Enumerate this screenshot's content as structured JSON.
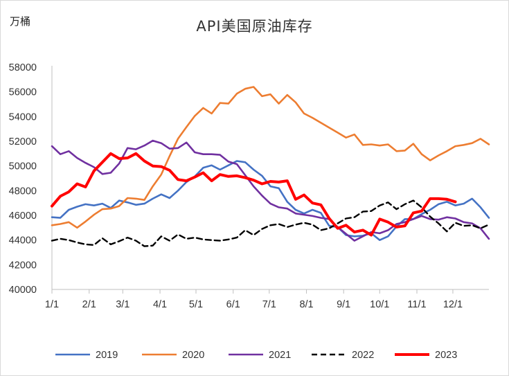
{
  "chart_data": {
    "type": "line",
    "title": "API美国原油库存",
    "unit_label": "万桶",
    "ylim": [
      40000,
      58000
    ],
    "yticks": [
      40000,
      42000,
      44000,
      46000,
      48000,
      50000,
      52000,
      54000,
      56000,
      58000
    ],
    "xlim": [
      1,
      53
    ],
    "xticks": [
      {
        "label": "1/1",
        "week": 1
      },
      {
        "label": "2/1",
        "week": 5.43
      },
      {
        "label": "3/1",
        "week": 9.43
      },
      {
        "label": "4/1",
        "week": 13.86
      },
      {
        "label": "5/1",
        "week": 18.14
      },
      {
        "label": "6/1",
        "week": 22.57
      },
      {
        "label": "7/1",
        "week": 26.86
      },
      {
        "label": "8/1",
        "week": 31.29
      },
      {
        "label": "9/1",
        "week": 35.71
      },
      {
        "label": "10/1",
        "week": 40
      },
      {
        "label": "11/1",
        "week": 44.43
      },
      {
        "label": "12/1",
        "week": 48.71
      }
    ],
    "grid": false,
    "legend_position": "bottom",
    "series": [
      {
        "name": "2019",
        "color": "#4472C4",
        "dash": "solid",
        "width": 2.6,
        "values": [
          45850,
          45800,
          46450,
          46700,
          46900,
          46800,
          46950,
          46600,
          47200,
          47050,
          46850,
          46950,
          47350,
          47700,
          47400,
          48000,
          48700,
          49150,
          49850,
          50050,
          49700,
          50050,
          50400,
          50300,
          49700,
          49200,
          48350,
          48200,
          47100,
          46450,
          46150,
          46450,
          46200,
          45150,
          45050,
          44400,
          44300,
          44350,
          44550,
          44000,
          44300,
          45100,
          45700,
          45700,
          46100,
          46450,
          46900,
          47100,
          46800,
          46950,
          47350,
          46650,
          45800
        ]
      },
      {
        "name": "2020",
        "color": "#ED7D31",
        "dash": "solid",
        "width": 2.6,
        "values": [
          45200,
          45300,
          45450,
          45000,
          45500,
          46050,
          46500,
          46550,
          46750,
          47400,
          47350,
          47250,
          48350,
          49300,
          50800,
          52200,
          53150,
          54050,
          54700,
          54250,
          55100,
          55050,
          55850,
          56250,
          56400,
          55650,
          55800,
          55050,
          55750,
          55150,
          54250,
          53900,
          53500,
          53100,
          52700,
          52300,
          52550,
          51700,
          51750,
          51650,
          51750,
          51200,
          51250,
          51800,
          50950,
          50450,
          50850,
          51200,
          51600,
          51700,
          51850,
          52200,
          51750
        ]
      },
      {
        "name": "2021",
        "color": "#7030A0",
        "dash": "solid",
        "width": 2.6,
        "values": [
          51600,
          50950,
          51200,
          50650,
          50250,
          49900,
          49350,
          49450,
          50200,
          51450,
          51350,
          51650,
          52050,
          51850,
          51400,
          51450,
          51900,
          51100,
          50950,
          50950,
          50900,
          50350,
          50150,
          49250,
          48350,
          47600,
          46950,
          46650,
          46550,
          46150,
          46050,
          45950,
          45800,
          45700,
          45050,
          44500,
          43950,
          44300,
          44650,
          44550,
          44800,
          45300,
          45450,
          45700,
          45950,
          45700,
          45650,
          45850,
          45750,
          45450,
          45350,
          44950,
          44100
        ]
      },
      {
        "name": "2022",
        "color": "#000000",
        "dash": "8,5",
        "width": 2.4,
        "values": [
          43950,
          44100,
          44000,
          43800,
          43650,
          43600,
          44150,
          43650,
          43900,
          44200,
          43950,
          43500,
          43550,
          44300,
          43950,
          44450,
          44100,
          44200,
          44050,
          44000,
          43950,
          44050,
          44200,
          44800,
          44400,
          44900,
          45200,
          45300,
          45050,
          45250,
          45400,
          45250,
          44800,
          44950,
          45350,
          45750,
          45850,
          46300,
          46350,
          46800,
          47050,
          46500,
          46900,
          47200,
          46650,
          45900,
          45350,
          44700,
          45400,
          45150,
          45200,
          44950,
          45250
        ]
      },
      {
        "name": "2023",
        "color": "#FF0000",
        "dash": "solid",
        "width": 4,
        "values": [
          46750,
          47550,
          47900,
          48550,
          48300,
          49600,
          50300,
          51000,
          50600,
          50650,
          51000,
          50400,
          50000,
          49950,
          49650,
          48900,
          48800,
          49100,
          49450,
          48800,
          49300,
          49150,
          49200,
          49050,
          48850,
          48550,
          48750,
          48700,
          48800,
          47300,
          47650,
          47000,
          46850,
          45750,
          44950,
          45200,
          44650,
          44800,
          44400,
          45700,
          45450,
          45050,
          45150,
          46200,
          46350,
          47350,
          47350,
          47300,
          47100
        ]
      }
    ]
  }
}
